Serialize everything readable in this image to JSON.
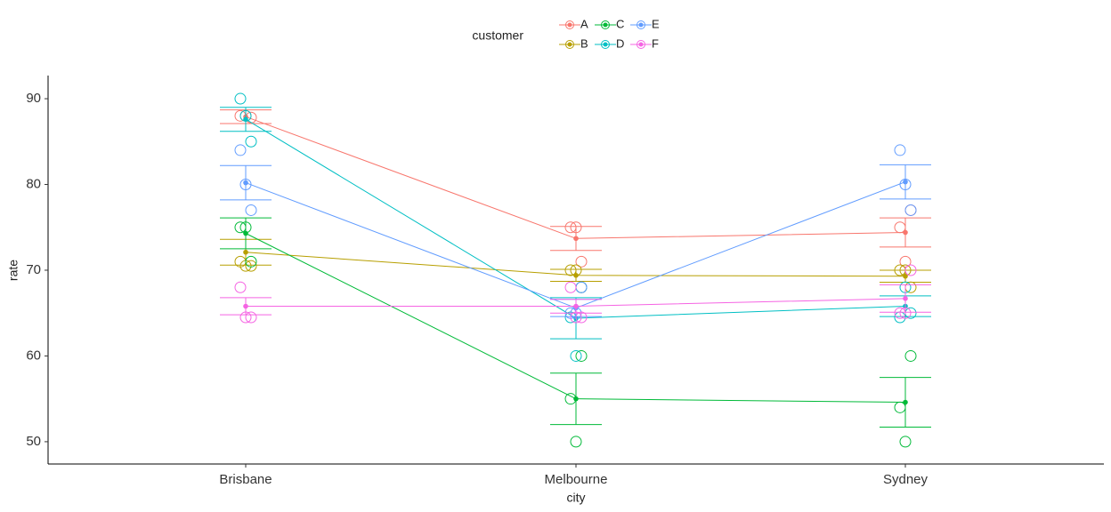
{
  "chart_data": {
    "type": "line",
    "x_label": "city",
    "y_label": "rate",
    "legend_title": "customer",
    "categories": [
      "Brisbane",
      "Melbourne",
      "Sydney"
    ],
    "ylim": [
      47.4,
      92.7
    ],
    "yticks": [
      50,
      60,
      70,
      80,
      90
    ],
    "grid": false,
    "legend_position": "top",
    "series": [
      {
        "name": "A",
        "color": "#F8766D",
        "values": [
          87.9,
          73.7,
          74.4
        ],
        "errors": [
          0.8,
          1.4,
          1.7
        ],
        "points": [
          [
            88,
            88,
            87.8
          ],
          [
            75,
            75,
            71
          ],
          [
            75,
            71,
            77
          ]
        ]
      },
      {
        "name": "B",
        "color": "#B79F00",
        "values": [
          72.1,
          69.4,
          69.3
        ],
        "errors": [
          1.5,
          0.7,
          0.7
        ],
        "points": [
          [
            71,
            70.5,
            70.5
          ],
          [
            70,
            70,
            68
          ],
          [
            70,
            70,
            68
          ]
        ]
      },
      {
        "name": "C",
        "color": "#00BA38",
        "values": [
          74.3,
          55,
          54.6
        ],
        "errors": [
          1.8,
          3,
          2.9
        ],
        "points": [
          [
            75,
            75,
            71
          ],
          [
            55,
            50,
            60
          ],
          [
            54,
            50,
            60
          ]
        ]
      },
      {
        "name": "D",
        "color": "#00BFC4",
        "values": [
          87.6,
          64.4,
          65.8
        ],
        "errors": [
          1.4,
          2.4,
          1.2
        ],
        "points": [
          [
            90,
            88,
            85
          ],
          [
            64.5,
            60,
            68
          ],
          [
            64.5,
            68,
            65
          ]
        ]
      },
      {
        "name": "E",
        "color": "#619CFF",
        "values": [
          80.2,
          65.6,
          80.3
        ],
        "errors": [
          2,
          1,
          2
        ],
        "points": [
          [
            84,
            80,
            77
          ],
          [
            65,
            65,
            68
          ],
          [
            84,
            80,
            77
          ]
        ]
      },
      {
        "name": "F",
        "color": "#F564E3",
        "values": [
          65.8,
          65.8,
          66.7
        ],
        "errors": [
          1,
          0.8,
          1.6
        ],
        "points": [
          [
            68,
            64.5,
            64.5
          ],
          [
            68,
            64.5,
            64.5
          ],
          [
            65,
            65,
            70
          ]
        ]
      }
    ]
  }
}
